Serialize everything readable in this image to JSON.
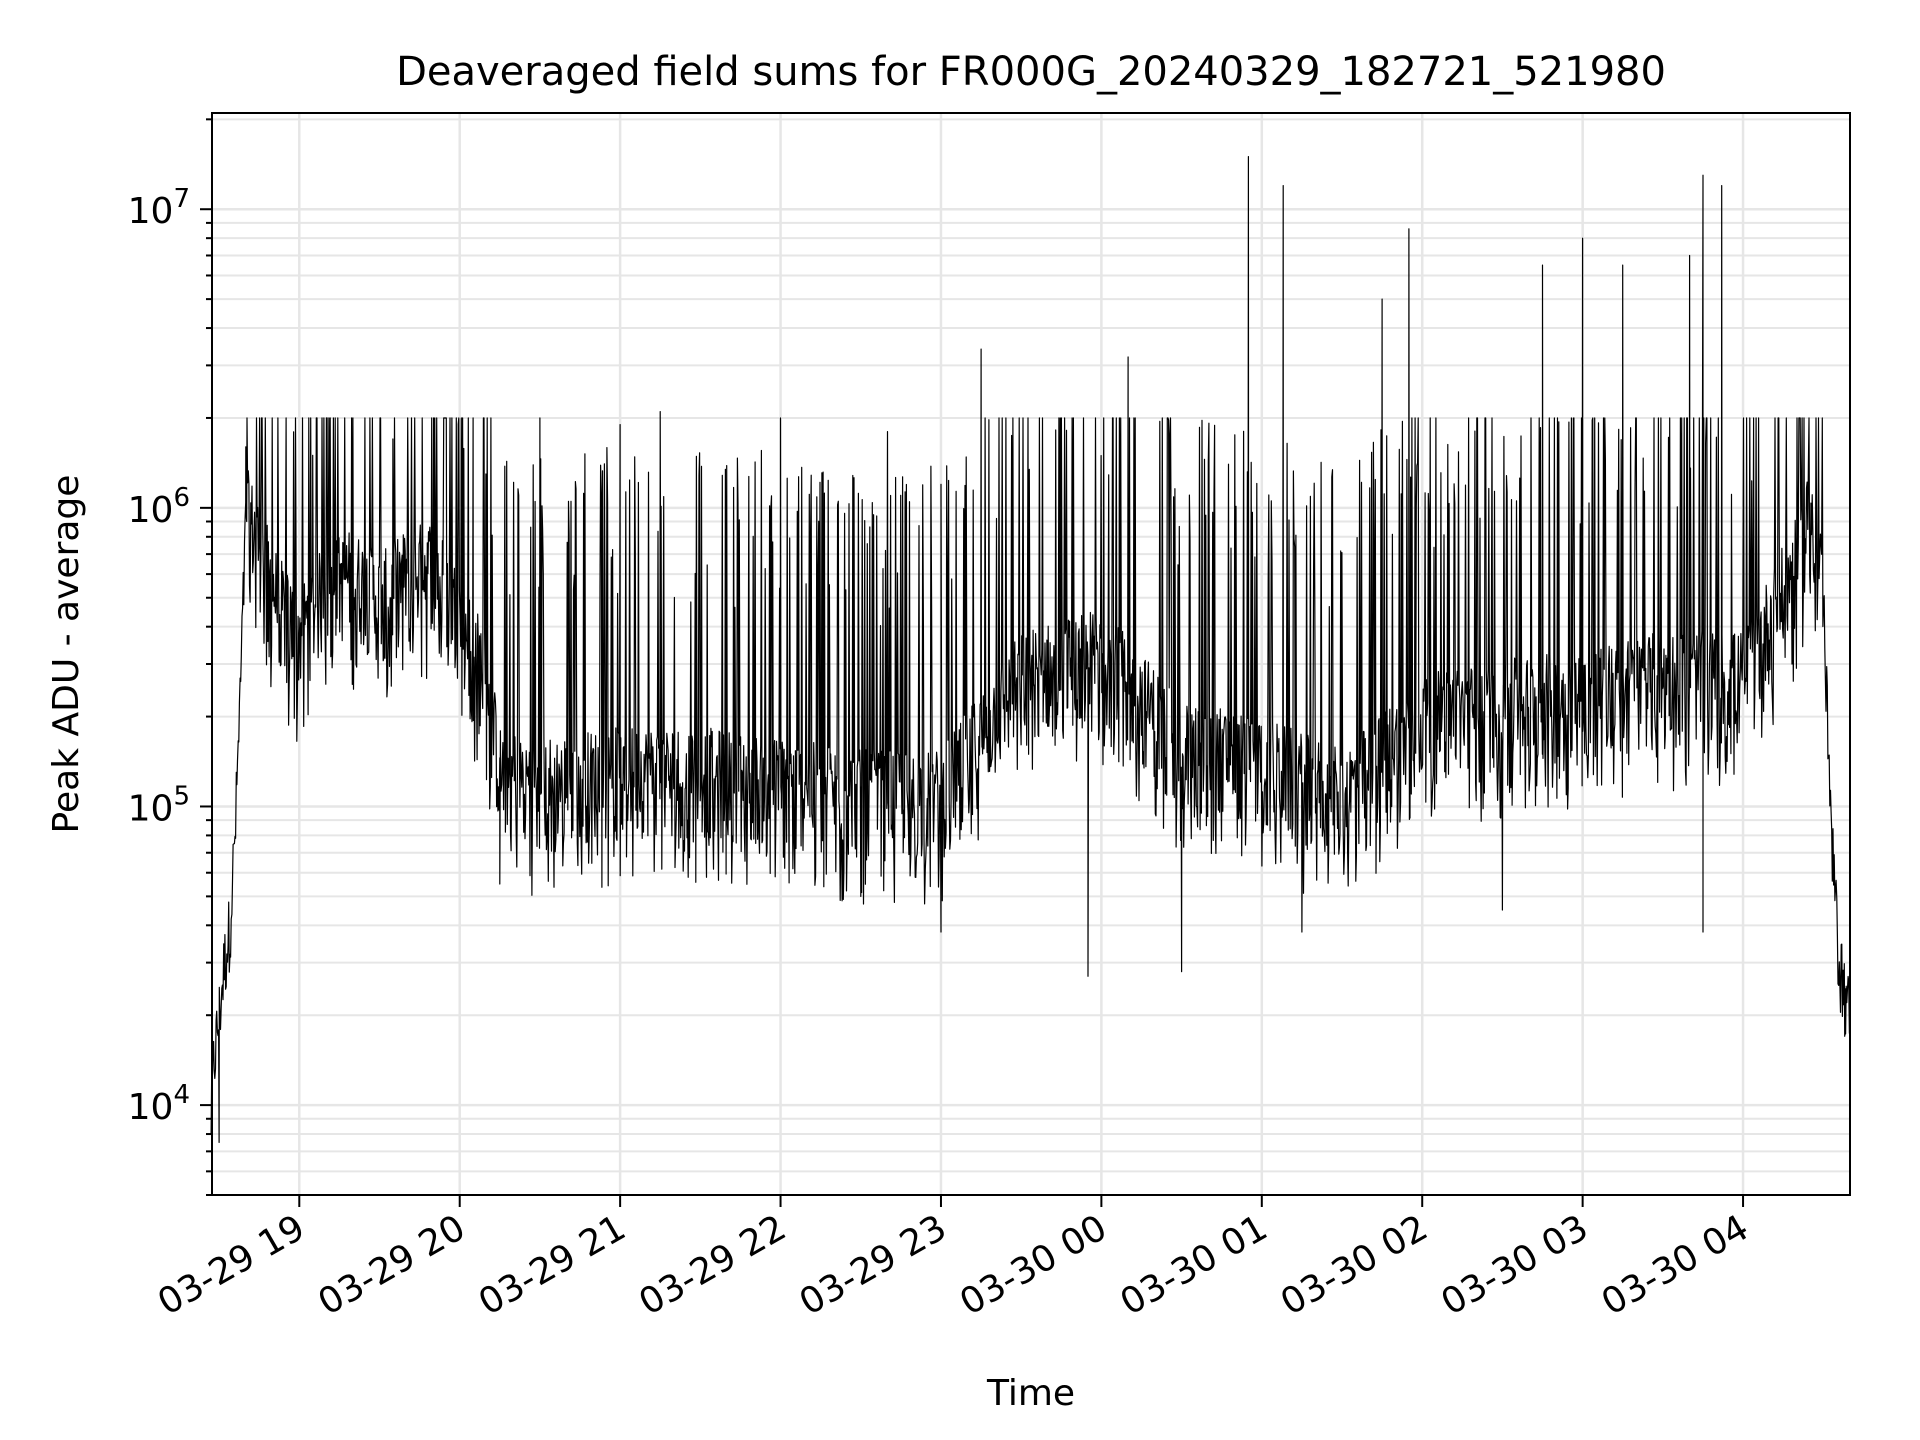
{
  "chart_data": {
    "type": "line",
    "title": "Deaveraged field sums for FR000G_20240329_182721_521980",
    "xlabel": "Time",
    "ylabel": "Peak ADU - average",
    "yscale": "log",
    "ylim": [
      5000,
      21000000
    ],
    "xlim": [
      "2024-03-29 18:27:21",
      "2024-03-30 04:40:00"
    ],
    "grid": true,
    "line_color": "#000000",
    "x_ticks": [
      {
        "t": "2024-03-29 19:00",
        "label": "03-29 19"
      },
      {
        "t": "2024-03-29 20:00",
        "label": "03-29 20"
      },
      {
        "t": "2024-03-29 21:00",
        "label": "03-29 21"
      },
      {
        "t": "2024-03-29 22:00",
        "label": "03-29 22"
      },
      {
        "t": "2024-03-29 23:00",
        "label": "03-29 23"
      },
      {
        "t": "2024-03-30 00:00",
        "label": "03-30 00"
      },
      {
        "t": "2024-03-30 01:00",
        "label": "03-30 01"
      },
      {
        "t": "2024-03-30 02:00",
        "label": "03-30 02"
      },
      {
        "t": "2024-03-30 03:00",
        "label": "03-30 03"
      },
      {
        "t": "2024-03-30 04:00",
        "label": "03-30 04"
      }
    ],
    "y_ticks": [
      {
        "value": 10000,
        "base": "10",
        "exp": "4"
      },
      {
        "value": 100000,
        "base": "10",
        "exp": "5"
      },
      {
        "value": 1000000,
        "base": "10",
        "exp": "6"
      },
      {
        "value": 10000000,
        "base": "10",
        "exp": "7"
      }
    ],
    "series": [
      {
        "points": [
          [
            "2024-03-29 18:27",
            9000
          ],
          [
            "2024-03-29 18:28",
            14000
          ],
          [
            "2024-03-29 18:30",
            20000
          ],
          [
            "2024-03-29 18:32",
            30000
          ],
          [
            "2024-03-29 18:34",
            40000
          ],
          [
            "2024-03-29 18:36",
            80000
          ],
          [
            "2024-03-29 18:38",
            250000
          ],
          [
            "2024-03-29 18:40",
            900000
          ],
          [
            "2024-03-29 18:45",
            700000
          ],
          [
            "2024-03-29 18:50",
            500000
          ],
          [
            "2024-03-29 18:55",
            400000
          ],
          [
            "2024-03-29 19:00",
            350000
          ],
          [
            "2024-03-29 19:10",
            500000
          ],
          [
            "2024-03-29 19:20",
            550000
          ],
          [
            "2024-03-29 19:30",
            450000
          ],
          [
            "2024-03-29 19:40",
            550000
          ],
          [
            "2024-03-29 19:50",
            600000
          ],
          [
            "2024-03-29 20:00",
            400000
          ],
          [
            "2024-03-29 20:10",
            250000
          ],
          [
            "2024-03-29 20:15",
            120000
          ],
          [
            "2024-03-29 20:30",
            110000
          ],
          [
            "2024-03-29 21:00",
            120000
          ],
          [
            "2024-03-29 21:30",
            120000
          ],
          [
            "2024-03-29 22:00",
            110000
          ],
          [
            "2024-03-29 22:30",
            100000
          ],
          [
            "2024-03-29 23:00",
            100000
          ],
          [
            "2024-03-29 23:30",
            250000
          ],
          [
            "2024-03-30 00:00",
            300000
          ],
          [
            "2024-03-30 00:30",
            150000
          ],
          [
            "2024-03-30 01:00",
            130000
          ],
          [
            "2024-03-30 01:30",
            100000
          ],
          [
            "2024-03-30 02:00",
            180000
          ],
          [
            "2024-03-30 02:30",
            200000
          ],
          [
            "2024-03-30 03:00",
            220000
          ],
          [
            "2024-03-30 03:30",
            250000
          ],
          [
            "2024-03-30 04:00",
            250000
          ],
          [
            "2024-03-30 04:20",
            600000
          ],
          [
            "2024-03-30 04:25",
            1000000
          ],
          [
            "2024-03-30 04:30",
            500000
          ],
          [
            "2024-03-30 04:33",
            80000
          ],
          [
            "2024-03-30 04:36",
            30000
          ],
          [
            "2024-03-30 04:40",
            20000
          ]
        ],
        "spikes": [
          [
            "2024-03-29 18:40",
            1600000
          ],
          [
            "2024-03-29 19:05",
            1500000
          ],
          [
            "2024-03-29 19:35",
            1700000
          ],
          [
            "2024-03-29 19:55",
            2000000
          ],
          [
            "2024-03-29 20:05",
            2000000
          ],
          [
            "2024-03-29 20:30",
            2000000
          ],
          [
            "2024-03-29 21:00",
            1900000
          ],
          [
            "2024-03-29 21:15",
            2100000
          ],
          [
            "2024-03-29 22:00",
            2000000
          ],
          [
            "2024-03-29 22:40",
            1800000
          ],
          [
            "2024-03-29 23:15",
            3400000
          ],
          [
            "2024-03-30 00:10",
            3200000
          ],
          [
            "2024-03-30 00:55",
            15000000
          ],
          [
            "2024-03-30 01:08",
            12000000
          ],
          [
            "2024-03-30 01:45",
            5000000
          ],
          [
            "2024-03-30 01:55",
            8600000
          ],
          [
            "2024-03-30 02:45",
            6500000
          ],
          [
            "2024-03-30 03:00",
            8000000
          ],
          [
            "2024-03-30 03:15",
            6500000
          ],
          [
            "2024-03-30 03:40",
            7000000
          ],
          [
            "2024-03-30 03:45",
            13000000
          ],
          [
            "2024-03-30 03:52",
            12000000
          ]
        ],
        "troughs": [
          [
            "2024-03-29 18:30",
            7500
          ],
          [
            "2024-03-29 20:15",
            55000
          ],
          [
            "2024-03-29 22:30",
            50000
          ],
          [
            "2024-03-29 23:00",
            38000
          ],
          [
            "2024-03-29 23:55",
            27000
          ],
          [
            "2024-03-30 00:30",
            28000
          ],
          [
            "2024-03-30 01:15",
            38000
          ],
          [
            "2024-03-30 02:30",
            45000
          ],
          [
            "2024-03-30 03:45",
            38000
          ],
          [
            "2024-03-30 04:38",
            17000
          ]
        ]
      }
    ]
  }
}
